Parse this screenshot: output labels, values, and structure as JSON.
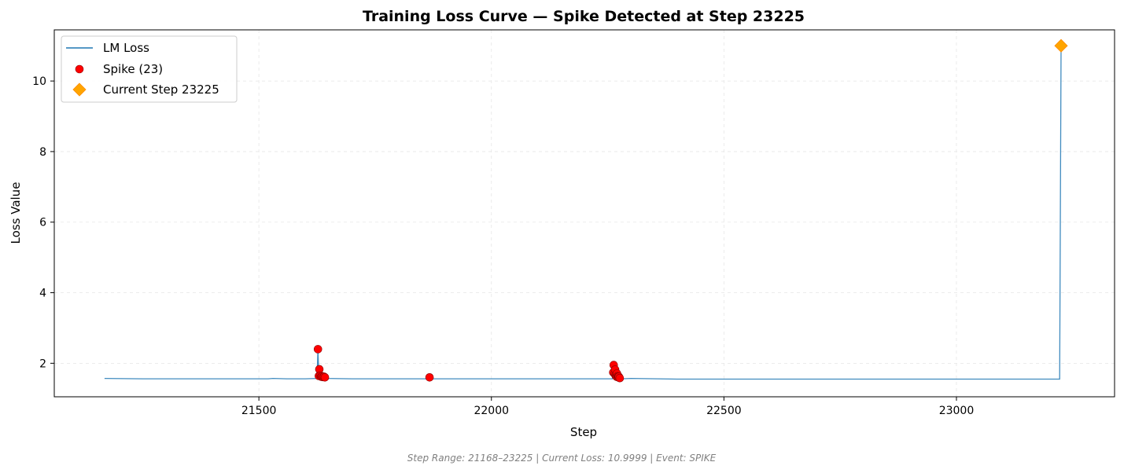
{
  "chart_data": {
    "type": "line",
    "title": "Training Loss Curve — Spike Detected at Step 23225",
    "xlabel": "Step",
    "ylabel": "Loss Value",
    "xlim": [
      21060,
      23340
    ],
    "ylim": [
      1.05,
      11.45
    ],
    "xticks": [
      21500,
      22000,
      22500,
      23000
    ],
    "yticks": [
      2,
      4,
      6,
      8,
      10
    ],
    "grid": true,
    "legend_position": "top-left",
    "footer": "Step Range: 21168–23225 | Current Loss: 10.9999 | Event: SPIKE",
    "series": [
      {
        "name": "LM Loss",
        "kind": "line",
        "color": "#1f77b4",
        "points": [
          [
            21168,
            1.57
          ],
          [
            21250,
            1.56
          ],
          [
            21350,
            1.56
          ],
          [
            21450,
            1.56
          ],
          [
            21520,
            1.56
          ],
          [
            21530,
            1.57
          ],
          [
            21560,
            1.56
          ],
          [
            21600,
            1.56
          ],
          [
            21625,
            1.57
          ],
          [
            21627,
            2.4
          ],
          [
            21629,
            1.64
          ],
          [
            21630,
            1.83
          ],
          [
            21632,
            1.65
          ],
          [
            21636,
            1.62
          ],
          [
            21640,
            1.62
          ],
          [
            21645,
            1.57
          ],
          [
            21700,
            1.56
          ],
          [
            21800,
            1.56
          ],
          [
            21866,
            1.56
          ],
          [
            21867,
            1.6
          ],
          [
            21869,
            1.56
          ],
          [
            21950,
            1.56
          ],
          [
            22050,
            1.56
          ],
          [
            22150,
            1.56
          ],
          [
            22260,
            1.56
          ],
          [
            22262,
            1.74
          ],
          [
            22263,
            1.95
          ],
          [
            22265,
            1.7
          ],
          [
            22266,
            1.82
          ],
          [
            22268,
            1.64
          ],
          [
            22270,
            1.71
          ],
          [
            22273,
            1.6
          ],
          [
            22276,
            1.58
          ],
          [
            22280,
            1.56
          ],
          [
            22300,
            1.57
          ],
          [
            22400,
            1.55
          ],
          [
            22500,
            1.55
          ],
          [
            22600,
            1.55
          ],
          [
            22700,
            1.55
          ],
          [
            22800,
            1.55
          ],
          [
            22900,
            1.55
          ],
          [
            23000,
            1.55
          ],
          [
            23100,
            1.55
          ],
          [
            23200,
            1.55
          ],
          [
            23222,
            1.55
          ],
          [
            23225,
            11.0
          ]
        ]
      },
      {
        "name": "Spike (23)",
        "kind": "scatter",
        "color": "#ff0000",
        "points": [
          [
            21627,
            2.4
          ],
          [
            21630,
            1.83
          ],
          [
            21629,
            1.64
          ],
          [
            21632,
            1.65
          ],
          [
            21634,
            1.62
          ],
          [
            21636,
            1.63
          ],
          [
            21638,
            1.61
          ],
          [
            21640,
            1.62
          ],
          [
            21642,
            1.6
          ],
          [
            21867,
            1.6
          ],
          [
            22262,
            1.74
          ],
          [
            22263,
            1.95
          ],
          [
            22265,
            1.7
          ],
          [
            22266,
            1.82
          ],
          [
            22267,
            1.66
          ],
          [
            22268,
            1.64
          ],
          [
            22269,
            1.62
          ],
          [
            22270,
            1.71
          ],
          [
            22271,
            1.63
          ],
          [
            22272,
            1.61
          ],
          [
            22273,
            1.6
          ],
          [
            22274,
            1.62
          ],
          [
            22276,
            1.58
          ]
        ]
      },
      {
        "name": "Current Step 23225",
        "kind": "marker",
        "color": "#ffa500",
        "points": [
          [
            23225,
            11.0
          ]
        ]
      }
    ]
  }
}
